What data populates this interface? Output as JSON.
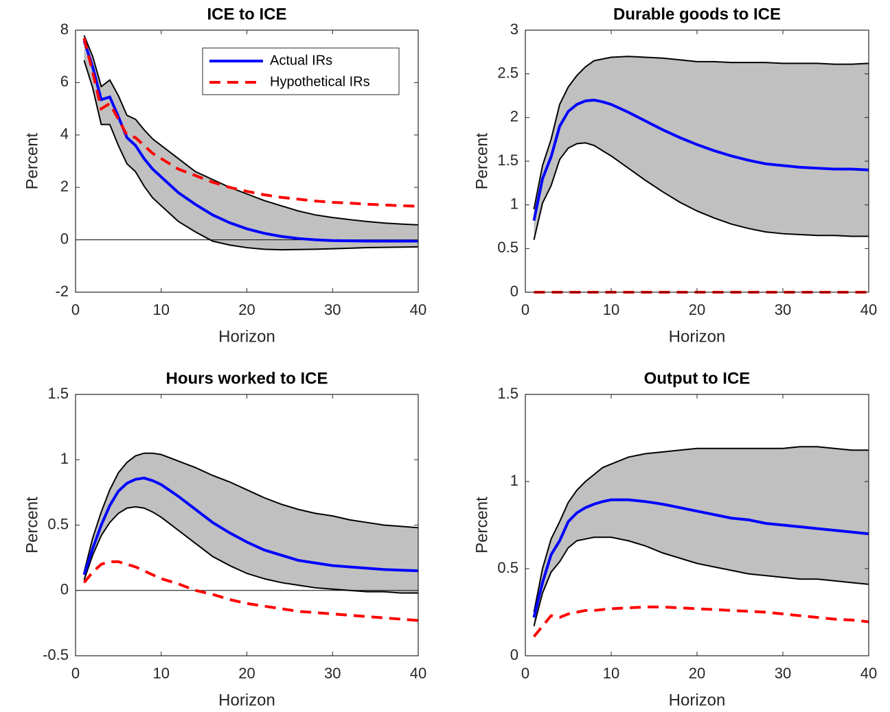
{
  "chart_data": [
    {
      "type": "line",
      "title": "ICE to ICE",
      "xlabel": "Horizon",
      "ylabel": "Percent",
      "x": [
        1,
        2,
        3,
        4,
        5,
        6,
        7,
        8,
        9,
        10,
        12,
        14,
        16,
        18,
        20,
        22,
        24,
        26,
        28,
        30,
        32,
        34,
        36,
        38,
        40
      ],
      "xlim": [
        0,
        40
      ],
      "xticks": [
        0,
        10,
        20,
        30,
        40
      ],
      "ylim": [
        -2,
        8
      ],
      "yticks": [
        -2,
        0,
        2,
        4,
        6,
        8
      ],
      "zero_line": true,
      "legend": "upper right",
      "band": {
        "color": "#c0c0c0",
        "upper": [
          7.8,
          7.0,
          5.85,
          6.1,
          5.5,
          4.75,
          4.6,
          4.2,
          3.85,
          3.6,
          3.1,
          2.6,
          2.3,
          2.0,
          1.75,
          1.5,
          1.3,
          1.1,
          0.95,
          0.85,
          0.77,
          0.7,
          0.64,
          0.6,
          0.57
        ],
        "lower": [
          6.85,
          5.8,
          4.4,
          4.4,
          3.6,
          2.9,
          2.6,
          2.05,
          1.6,
          1.3,
          0.7,
          0.3,
          -0.05,
          -0.2,
          -0.3,
          -0.36,
          -0.38,
          -0.37,
          -0.36,
          -0.34,
          -0.32,
          -0.3,
          -0.29,
          -0.28,
          -0.27
        ]
      },
      "series": [
        {
          "name": "Actual IRs",
          "color": "#0000ff",
          "line_style": "solid",
          "values": [
            7.6,
            6.6,
            5.35,
            5.45,
            4.7,
            3.9,
            3.6,
            3.1,
            2.7,
            2.4,
            1.8,
            1.35,
            0.95,
            0.65,
            0.42,
            0.25,
            0.13,
            0.05,
            0.0,
            -0.03,
            -0.04,
            -0.05,
            -0.05,
            -0.05,
            -0.05
          ]
        },
        {
          "name": "Hypothetical IRs",
          "color": "#ff0000",
          "line_style": "dashed",
          "values": [
            7.7,
            6.4,
            5.0,
            5.2,
            4.6,
            4.0,
            3.9,
            3.6,
            3.3,
            3.1,
            2.7,
            2.45,
            2.2,
            2.0,
            1.85,
            1.72,
            1.62,
            1.55,
            1.48,
            1.43,
            1.4,
            1.36,
            1.33,
            1.3,
            1.28
          ]
        }
      ]
    },
    {
      "type": "line",
      "title": "Durable goods to ICE",
      "xlabel": "Horizon",
      "ylabel": "Percent",
      "x": [
        1,
        2,
        3,
        4,
        5,
        6,
        7,
        8,
        9,
        10,
        12,
        14,
        16,
        18,
        20,
        22,
        24,
        26,
        28,
        30,
        32,
        34,
        36,
        38,
        40
      ],
      "xlim": [
        0,
        40
      ],
      "xticks": [
        0,
        10,
        20,
        30,
        40
      ],
      "ylim": [
        0,
        3
      ],
      "yticks": [
        0,
        0.5,
        1,
        1.5,
        2,
        2.5,
        3
      ],
      "zero_line": false,
      "legend": false,
      "band": {
        "color": "#c0c0c0",
        "upper": [
          0.95,
          1.45,
          1.75,
          2.15,
          2.35,
          2.48,
          2.58,
          2.65,
          2.67,
          2.69,
          2.7,
          2.69,
          2.68,
          2.66,
          2.64,
          2.64,
          2.63,
          2.63,
          2.63,
          2.62,
          2.62,
          2.62,
          2.61,
          2.61,
          2.62
        ],
        "lower": [
          0.6,
          1.02,
          1.22,
          1.52,
          1.65,
          1.7,
          1.71,
          1.68,
          1.62,
          1.56,
          1.42,
          1.28,
          1.15,
          1.03,
          0.93,
          0.85,
          0.78,
          0.73,
          0.69,
          0.67,
          0.66,
          0.65,
          0.65,
          0.64,
          0.64
        ]
      },
      "series": [
        {
          "name": "Actual IRs",
          "color": "#0000ff",
          "line_style": "solid",
          "values": [
            0.82,
            1.3,
            1.55,
            1.9,
            2.07,
            2.15,
            2.19,
            2.2,
            2.18,
            2.15,
            2.06,
            1.96,
            1.86,
            1.77,
            1.69,
            1.62,
            1.56,
            1.51,
            1.47,
            1.45,
            1.43,
            1.42,
            1.41,
            1.41,
            1.4
          ]
        },
        {
          "name": "Hypothetical IRs",
          "color": "#ff0000",
          "line_style": "dashed",
          "values": [
            0,
            0,
            0,
            0,
            0,
            0,
            0,
            0,
            0,
            0,
            0,
            0,
            0,
            0,
            0,
            0,
            0,
            0,
            0,
            0,
            0,
            0,
            0,
            0,
            0
          ]
        }
      ]
    },
    {
      "type": "line",
      "title": "Hours worked to ICE",
      "xlabel": "Horizon",
      "ylabel": "Percent",
      "x": [
        1,
        2,
        3,
        4,
        5,
        6,
        7,
        8,
        9,
        10,
        12,
        14,
        16,
        18,
        20,
        22,
        24,
        26,
        28,
        30,
        32,
        34,
        36,
        38,
        40
      ],
      "xlim": [
        0,
        40
      ],
      "xticks": [
        0,
        10,
        20,
        30,
        40
      ],
      "ylim": [
        -0.5,
        1.5
      ],
      "yticks": [
        -0.5,
        0,
        0.5,
        1,
        1.5
      ],
      "zero_line": true,
      "legend": false,
      "band": {
        "color": "#c0c0c0",
        "upper": [
          0.14,
          0.4,
          0.6,
          0.77,
          0.9,
          0.98,
          1.03,
          1.05,
          1.05,
          1.04,
          0.99,
          0.94,
          0.88,
          0.83,
          0.77,
          0.71,
          0.66,
          0.62,
          0.59,
          0.57,
          0.54,
          0.52,
          0.5,
          0.49,
          0.48
        ],
        "lower": [
          0.08,
          0.27,
          0.42,
          0.52,
          0.59,
          0.63,
          0.64,
          0.63,
          0.6,
          0.56,
          0.46,
          0.36,
          0.26,
          0.19,
          0.13,
          0.09,
          0.06,
          0.04,
          0.02,
          0.01,
          0.0,
          -0.01,
          -0.01,
          -0.02,
          -0.02
        ]
      },
      "series": [
        {
          "name": "Actual IRs",
          "color": "#0000ff",
          "line_style": "solid",
          "values": [
            0.12,
            0.32,
            0.5,
            0.65,
            0.76,
            0.82,
            0.85,
            0.86,
            0.84,
            0.81,
            0.72,
            0.62,
            0.52,
            0.44,
            0.37,
            0.31,
            0.27,
            0.23,
            0.21,
            0.19,
            0.18,
            0.17,
            0.16,
            0.155,
            0.15
          ]
        },
        {
          "name": "Hypothetical IRs",
          "color": "#ff0000",
          "line_style": "dashed",
          "values": [
            0.06,
            0.14,
            0.2,
            0.22,
            0.22,
            0.2,
            0.18,
            0.15,
            0.12,
            0.09,
            0.05,
            0.0,
            -0.03,
            -0.07,
            -0.1,
            -0.12,
            -0.14,
            -0.16,
            -0.17,
            -0.18,
            -0.19,
            -0.2,
            -0.21,
            -0.22,
            -0.23
          ]
        }
      ]
    },
    {
      "type": "line",
      "title": "Output to ICE",
      "xlabel": "Horizon",
      "ylabel": "Percent",
      "x": [
        1,
        2,
        3,
        4,
        5,
        6,
        7,
        8,
        9,
        10,
        12,
        14,
        16,
        18,
        20,
        22,
        24,
        26,
        28,
        30,
        32,
        34,
        36,
        38,
        40
      ],
      "xlim": [
        0,
        40
      ],
      "xticks": [
        0,
        10,
        20,
        30,
        40
      ],
      "ylim": [
        0,
        1.5
      ],
      "yticks": [
        0,
        0.5,
        1,
        1.5
      ],
      "zero_line": false,
      "legend": false,
      "band": {
        "color": "#c0c0c0",
        "upper": [
          0.25,
          0.5,
          0.67,
          0.77,
          0.88,
          0.95,
          1.0,
          1.04,
          1.08,
          1.1,
          1.14,
          1.16,
          1.17,
          1.18,
          1.19,
          1.19,
          1.19,
          1.19,
          1.19,
          1.19,
          1.2,
          1.2,
          1.19,
          1.18,
          1.18
        ],
        "lower": [
          0.17,
          0.36,
          0.48,
          0.54,
          0.62,
          0.66,
          0.67,
          0.68,
          0.68,
          0.68,
          0.66,
          0.63,
          0.59,
          0.56,
          0.53,
          0.51,
          0.49,
          0.47,
          0.46,
          0.45,
          0.44,
          0.44,
          0.43,
          0.42,
          0.41
        ]
      },
      "series": [
        {
          "name": "Actual IRs",
          "color": "#0000ff",
          "line_style": "solid",
          "values": [
            0.22,
            0.42,
            0.58,
            0.66,
            0.77,
            0.82,
            0.85,
            0.87,
            0.885,
            0.895,
            0.895,
            0.885,
            0.87,
            0.85,
            0.83,
            0.81,
            0.79,
            0.78,
            0.76,
            0.75,
            0.74,
            0.73,
            0.72,
            0.71,
            0.7
          ]
        },
        {
          "name": "Hypothetical IRs",
          "color": "#ff0000",
          "line_style": "dashed",
          "values": [
            0.11,
            0.17,
            0.23,
            0.22,
            0.24,
            0.25,
            0.26,
            0.26,
            0.265,
            0.27,
            0.275,
            0.28,
            0.28,
            0.275,
            0.27,
            0.265,
            0.26,
            0.255,
            0.25,
            0.24,
            0.23,
            0.22,
            0.21,
            0.205,
            0.195
          ]
        }
      ]
    }
  ]
}
